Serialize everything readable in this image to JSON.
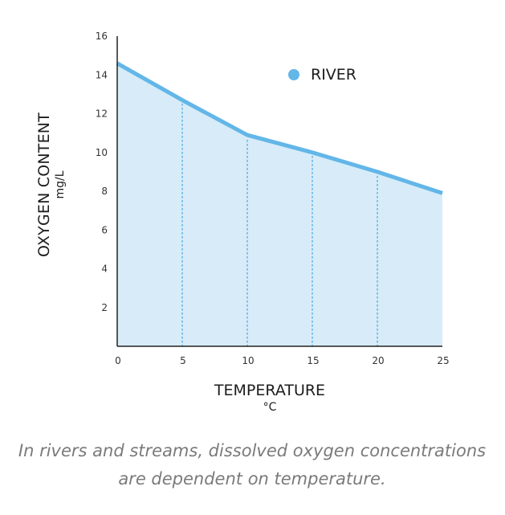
{
  "chart_data": {
    "type": "area",
    "xlabel": "TEMPERATURE",
    "xunit": "°C",
    "ylabel": "OXYGEN CONTENT",
    "yunit": "mg/L",
    "x": [
      0,
      5,
      10,
      15,
      20,
      25
    ],
    "xlim": [
      0,
      25
    ],
    "ylim": [
      0,
      16
    ],
    "x_ticks": [
      0,
      5,
      10,
      15,
      20,
      25
    ],
    "y_ticks": [
      2,
      4,
      6,
      8,
      10,
      12,
      14,
      16
    ],
    "series": [
      {
        "name": "RIVER",
        "values": [
          14.6,
          12.7,
          10.9,
          10.0,
          9.0,
          7.9
        ]
      }
    ],
    "legend_position": "top-right",
    "grid": "vertical dotted at x ticks",
    "colors": {
      "line": "#63b6e8",
      "fill": "#d7ecf8",
      "dot": "#63b6e8",
      "axis": "#222222",
      "grid": "#63b6e8"
    }
  },
  "caption": "In rivers and streams, dissolved oxygen concentrations are dependent on temperature."
}
